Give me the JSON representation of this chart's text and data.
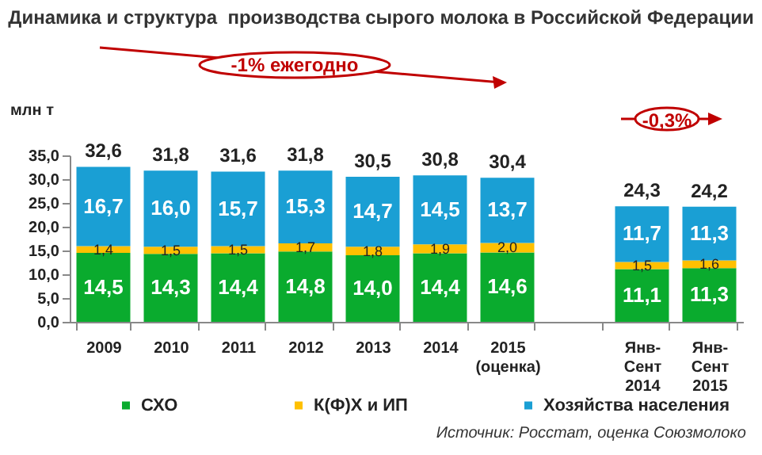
{
  "chart_data": {
    "type": "bar",
    "title": "Динамика и структура  производства сырого молока в Российской Федерации",
    "ylabel": "млн т",
    "categories": [
      "2009",
      "2010",
      "2011",
      "2012",
      "2013",
      "2014",
      "2015 (оценка)",
      null,
      "Янв-Сент 2014",
      "Янв-Сент 2015"
    ],
    "stacked": true,
    "series": [
      {
        "name": "СХО",
        "color": "#0aab2e",
        "values": [
          14.5,
          14.3,
          14.4,
          14.8,
          14.0,
          14.4,
          14.6,
          null,
          11.1,
          11.3
        ],
        "value_labels": [
          "14,5",
          "14,3",
          "14,4",
          "14,8",
          "14,0",
          "14,4",
          "14,6",
          null,
          "11,1",
          "11,3"
        ]
      },
      {
        "name": "К(Ф)Х и ИП",
        "color": "#ffc000",
        "values": [
          1.4,
          1.5,
          1.5,
          1.7,
          1.8,
          1.9,
          2.0,
          null,
          1.5,
          1.6
        ],
        "value_labels": [
          "1,4",
          "1,5",
          "1,5",
          "1,7",
          "1,8",
          "1,9",
          "2,0",
          null,
          "1,5",
          "1,6"
        ]
      },
      {
        "name": "Хозяйства населения",
        "color": "#1a9fd4",
        "values": [
          16.7,
          16.0,
          15.7,
          15.3,
          14.7,
          14.5,
          13.7,
          null,
          11.7,
          11.3
        ],
        "value_labels": [
          "16,7",
          "16,0",
          "15,7",
          "15,3",
          "14,7",
          "14,5",
          "13,7",
          null,
          "11,7",
          "11,3"
        ]
      }
    ],
    "totals": [
      "32,6",
      "31,8",
      "31,6",
      "31,8",
      "30,5",
      "30,8",
      "30,4",
      null,
      "24,3",
      "24,2"
    ],
    "ylim": [
      0,
      35
    ],
    "yticks": [
      {
        "value": 0,
        "label": "0,0"
      },
      {
        "value": 5,
        "label": "5,0"
      },
      {
        "value": 10,
        "label": "10,0"
      },
      {
        "value": 15,
        "label": "15,0"
      },
      {
        "value": 20,
        "label": "20,0"
      },
      {
        "value": 25,
        "label": "25,0"
      },
      {
        "value": 30,
        "label": "30,0"
      },
      {
        "value": 35,
        "label": "35,0"
      }
    ],
    "grid": false,
    "legend": "bottom",
    "annotations": [
      "-1% ежегодно",
      "-0,3%",
      "Источник: Росстат, оценка Союзмолоко"
    ]
  }
}
